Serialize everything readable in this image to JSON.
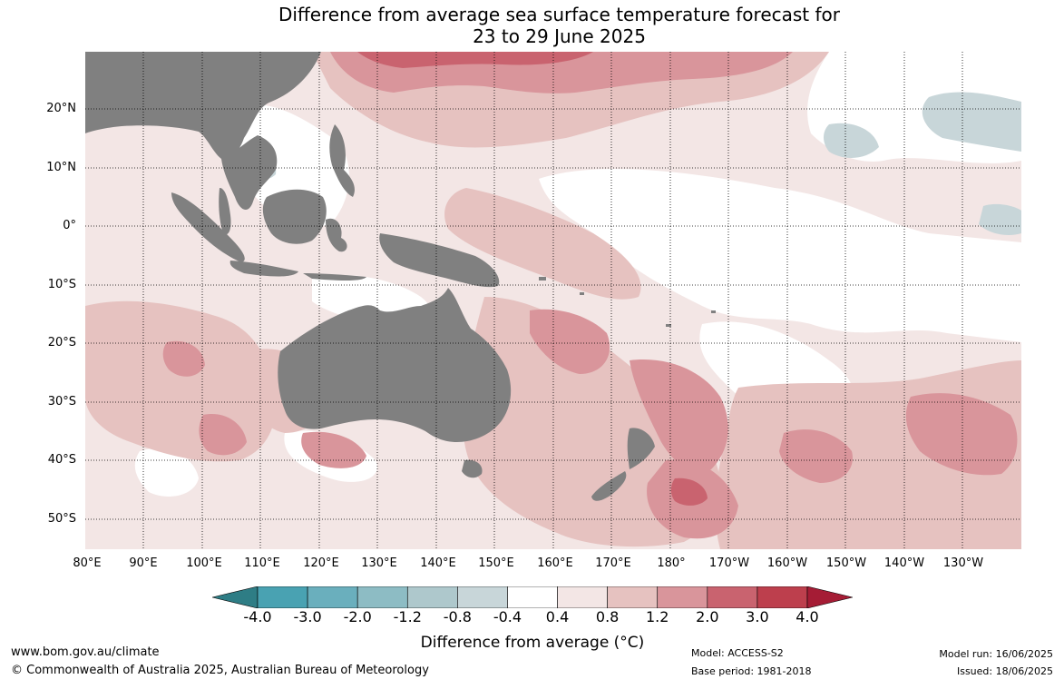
{
  "title_line1": "Difference from average sea surface temperature forecast for",
  "title_line2": "23 to 29 June 2025",
  "lat_labels": [
    "20°N",
    "10°N",
    "0°",
    "10°S",
    "20°S",
    "30°S",
    "40°S",
    "50°S"
  ],
  "lon_labels": [
    "80°E",
    "90°E",
    "100°E",
    "110°E",
    "120°E",
    "130°E",
    "140°E",
    "150°E",
    "160°E",
    "170°E",
    "180°",
    "170°W",
    "160°W",
    "150°W",
    "140°W",
    "130°W"
  ],
  "colorbar": {
    "ticks": [
      "-4.0",
      "-3.0",
      "-2.0",
      "-1.2",
      "-0.8",
      "-0.4",
      "0.4",
      "0.8",
      "1.2",
      "2.0",
      "3.0",
      "4.0"
    ],
    "colors": [
      "#2e7d85",
      "#49a2b2",
      "#6aafbd",
      "#8dbcc4",
      "#aec8cc",
      "#c8d6d9",
      "#ffffff",
      "#f3e6e5",
      "#e6c2c0",
      "#d9959b",
      "#c9636f",
      "#bd3f4d",
      "#a51c35"
    ],
    "label": "Difference from average (°C)"
  },
  "footer": {
    "url": "www.bom.gov.au/climate",
    "copyright": "© Commonwealth of Australia 2025, Australian Bureau of Meteorology",
    "model": "Model: ACCESS-S2",
    "base_period": "Base period: 1981-2018",
    "model_run": "Model run: 16/06/2025",
    "issued": "Issued: 18/06/2025"
  },
  "land_color": "#808080"
}
